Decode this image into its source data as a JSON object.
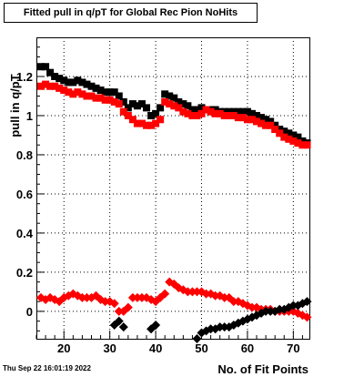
{
  "chart_data": {
    "type": "scatter",
    "title": "Fitted pull in q/pT for Global Rec Pion NoHits",
    "xlabel": "No. of Fit Points",
    "ylabel": "pull in q/pT",
    "xlim": [
      14,
      73.5
    ],
    "ylim": [
      -0.14,
      1.4
    ],
    "x_ticks": [
      20,
      30,
      40,
      50,
      60,
      70
    ],
    "y_ticks": [
      0,
      0.2,
      0.4,
      0.6,
      0.8,
      1,
      1.2
    ],
    "y_tick_labels": [
      "0",
      "0.2",
      "0.4",
      "0.6",
      "0.8",
      "1",
      "1.2"
    ],
    "grid": true,
    "timestamp": "Thu Sep 22 16:01:19 2022",
    "series": [
      {
        "color": "#000000",
        "marker": "square",
        "x": [
          15,
          16,
          17,
          18,
          19,
          20,
          21,
          22,
          23,
          24,
          25,
          26,
          27,
          28,
          29,
          30,
          31,
          32,
          33,
          34,
          35,
          36,
          37,
          38,
          39,
          40,
          41,
          42,
          43,
          44,
          45,
          46,
          47,
          48,
          49,
          50,
          51,
          52,
          53,
          54,
          55,
          56,
          57,
          58,
          59,
          60,
          61,
          62,
          63,
          64,
          65,
          66,
          67,
          68,
          69,
          70,
          71,
          72,
          73
        ],
        "y": [
          1.25,
          1.25,
          1.22,
          1.2,
          1.19,
          1.18,
          1.17,
          1.17,
          1.18,
          1.17,
          1.16,
          1.15,
          1.14,
          1.13,
          1.12,
          1.12,
          1.12,
          1.1,
          1.07,
          1.04,
          1.06,
          1.05,
          1.06,
          1.04,
          1.0,
          1.01,
          1.04,
          1.11,
          1.1,
          1.09,
          1.07,
          1.06,
          1.05,
          1.03,
          1.03,
          1.04,
          1.03,
          1.03,
          1.03,
          1.02,
          1.02,
          1.02,
          1.02,
          1.02,
          1.02,
          1.02,
          1.01,
          1.0,
          0.99,
          0.98,
          0.97,
          0.95,
          0.93,
          0.92,
          0.91,
          0.9,
          0.89,
          0.87,
          0.86
        ]
      },
      {
        "color": "#ff0000",
        "marker": "square",
        "x": [
          15,
          16,
          17,
          18,
          19,
          20,
          21,
          22,
          23,
          24,
          25,
          26,
          27,
          28,
          29,
          30,
          31,
          32,
          33,
          34,
          35,
          36,
          37,
          38,
          39,
          40,
          41,
          42,
          43,
          44,
          45,
          46,
          47,
          48,
          49,
          50,
          51,
          52,
          53,
          54,
          55,
          56,
          57,
          58,
          59,
          60,
          61,
          62,
          63,
          64,
          65,
          66,
          67,
          68,
          69,
          70,
          71,
          72,
          73
        ],
        "y": [
          1.15,
          1.16,
          1.15,
          1.15,
          1.14,
          1.13,
          1.12,
          1.11,
          1.12,
          1.11,
          1.1,
          1.1,
          1.09,
          1.09,
          1.08,
          1.08,
          1.07,
          1.06,
          1.02,
          1.0,
          0.98,
          0.96,
          0.96,
          0.95,
          0.95,
          0.96,
          0.98,
          1.07,
          1.06,
          1.05,
          1.04,
          1.02,
          1.01,
          1.0,
          1.0,
          1.01,
          1.03,
          1.02,
          1.01,
          1.01,
          1.0,
          1.0,
          1.0,
          0.99,
          0.99,
          0.98,
          0.98,
          0.97,
          0.96,
          0.95,
          0.95,
          0.93,
          0.91,
          0.89,
          0.88,
          0.87,
          0.86,
          0.85,
          0.85
        ]
      },
      {
        "color": "#ff0000",
        "marker": "diamond",
        "x": [
          15,
          16,
          17,
          18,
          19,
          20,
          21,
          22,
          23,
          24,
          25,
          26,
          27,
          28,
          29,
          30,
          31,
          32,
          33,
          34,
          35,
          36,
          37,
          38,
          39,
          40,
          41,
          42,
          43,
          44,
          45,
          46,
          47,
          48,
          49,
          50,
          51,
          52,
          53,
          54,
          55,
          56,
          57,
          58,
          59,
          60,
          61,
          62,
          63,
          64,
          65,
          66,
          67,
          68,
          69,
          70,
          71,
          72,
          73
        ],
        "y": [
          0.07,
          0.06,
          0.07,
          0.06,
          0.05,
          0.07,
          0.08,
          0.09,
          0.08,
          0.07,
          0.07,
          0.07,
          0.08,
          0.06,
          0.05,
          0.05,
          0.04,
          0.0,
          0.0,
          0.02,
          0.07,
          0.07,
          0.07,
          0.07,
          0.06,
          0.05,
          0.07,
          0.09,
          0.15,
          0.14,
          0.12,
          0.11,
          0.1,
          0.1,
          0.1,
          0.1,
          0.09,
          0.09,
          0.08,
          0.08,
          0.07,
          0.07,
          0.05,
          0.05,
          0.04,
          0.03,
          0.02,
          0.02,
          0.01,
          0.01,
          0.01,
          0.0,
          0.0,
          0.0,
          0.0,
          0.0,
          -0.01,
          -0.02,
          -0.03
        ]
      },
      {
        "color": "#000000",
        "marker": "diamond",
        "x": [
          31,
          32,
          33,
          39,
          40,
          49,
          50,
          51,
          52,
          53,
          54,
          55,
          56,
          57,
          58,
          59,
          60,
          61,
          62,
          63,
          64,
          65,
          66,
          67,
          68,
          69,
          70,
          71,
          72,
          73
        ],
        "y": [
          -0.07,
          -0.05,
          -0.08,
          -0.09,
          -0.07,
          -0.14,
          -0.11,
          -0.1,
          -0.09,
          -0.09,
          -0.08,
          -0.08,
          -0.08,
          -0.07,
          -0.06,
          -0.05,
          -0.04,
          -0.03,
          -0.02,
          -0.01,
          0.0,
          0.0,
          0.0,
          0.01,
          0.01,
          0.02,
          0.03,
          0.03,
          0.04,
          0.05
        ]
      }
    ]
  }
}
